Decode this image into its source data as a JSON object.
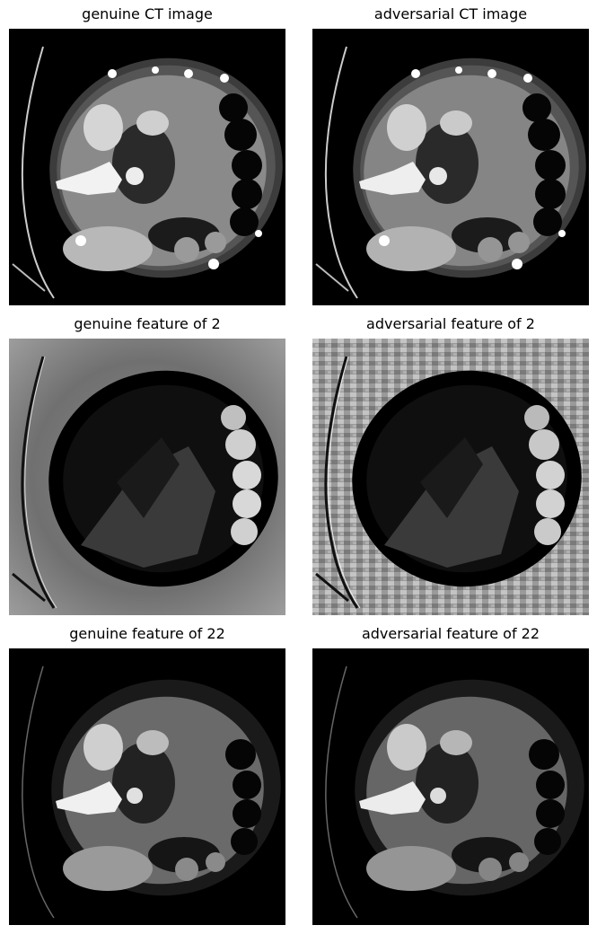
{
  "figure": {
    "panels": [
      {
        "title": "genuine CT image",
        "kind": "ct",
        "variant": "genuine"
      },
      {
        "title": "adversarial CT image",
        "kind": "ct",
        "variant": "adversarial"
      },
      {
        "title": "genuine feature of 2",
        "kind": "feature2",
        "variant": "genuine"
      },
      {
        "title": "adversarial feature of 2",
        "kind": "feature2",
        "variant": "adversarial"
      },
      {
        "title": "genuine feature of 22",
        "kind": "feature22",
        "variant": "genuine"
      },
      {
        "title": "adversarial feature of 22",
        "kind": "feature22",
        "variant": "adversarial"
      }
    ]
  }
}
